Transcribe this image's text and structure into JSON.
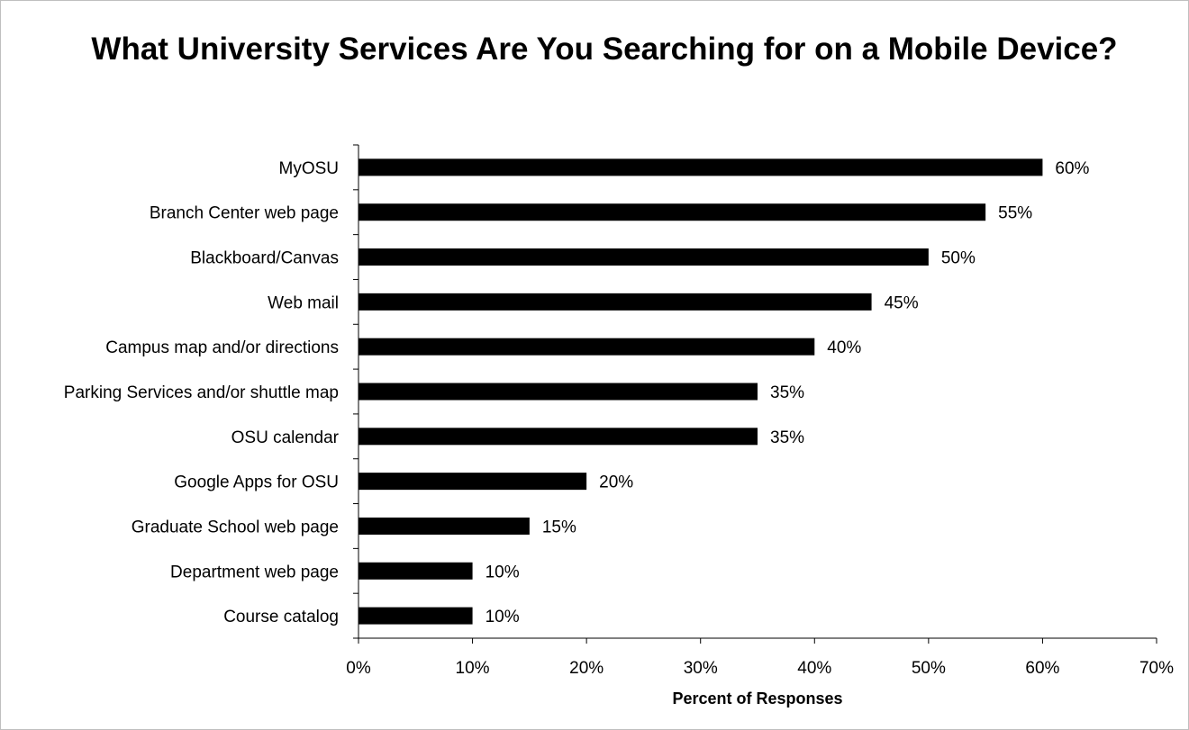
{
  "chart_data": {
    "type": "bar",
    "orientation": "horizontal",
    "title": "What University Services Are You Searching for on a Mobile Device?",
    "xlabel": "Percent of Responses",
    "ylabel": "",
    "xlim": [
      0,
      70
    ],
    "x_ticks": [
      "0%",
      "10%",
      "20%",
      "30%",
      "40%",
      "50%",
      "60%",
      "70%"
    ],
    "grid": false,
    "legend": "none",
    "bar_color": "#000000",
    "categories": [
      "MyOSU",
      "Branch Center web page",
      "Blackboard/Canvas",
      "Web mail",
      "Campus map and/or directions",
      "Parking Services and/or shuttle map",
      "OSU calendar",
      "Google Apps for OSU",
      "Graduate School web page",
      "Department web page",
      "Course catalog"
    ],
    "values": [
      60,
      55,
      50,
      45,
      40,
      35,
      35,
      20,
      15,
      10,
      10
    ],
    "data_labels": [
      "60%",
      "55%",
      "50%",
      "45%",
      "40%",
      "35%",
      "35%",
      "20%",
      "15%",
      "10%",
      "10%"
    ]
  }
}
